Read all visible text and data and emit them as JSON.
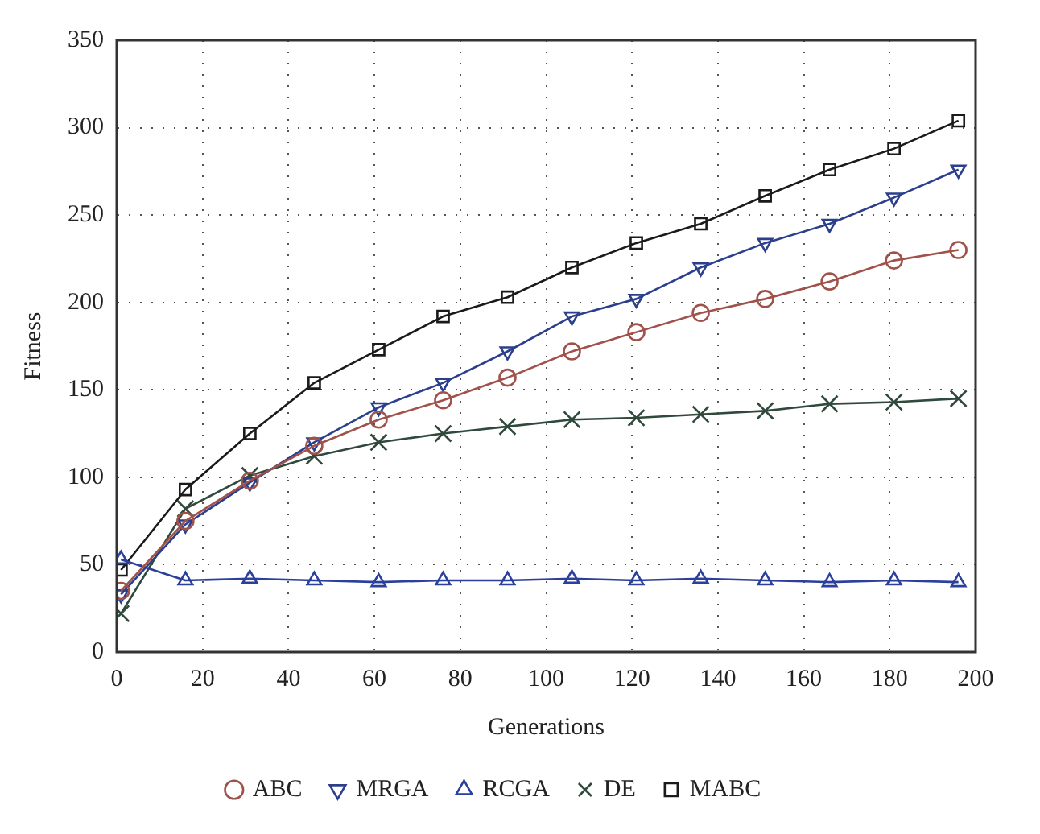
{
  "chart_data": {
    "type": "line",
    "xlabel": "Generations",
    "ylabel": "Fitness",
    "x": [
      1,
      16,
      31,
      46,
      61,
      76,
      91,
      106,
      121,
      136,
      151,
      166,
      181,
      196
    ],
    "xlim": [
      0,
      200
    ],
    "xticks": [
      0,
      20,
      40,
      60,
      80,
      100,
      120,
      140,
      160,
      180,
      200
    ],
    "ylim": [
      0,
      350
    ],
    "yticks": [
      0,
      50,
      100,
      150,
      200,
      250,
      300,
      350
    ],
    "grid": true,
    "legend": "bottom",
    "line_style": "solid",
    "series": [
      {
        "name": "ABC",
        "color": "#a0524a",
        "marker": "circle",
        "values": [
          35,
          75,
          98,
          118,
          133,
          144,
          157,
          172,
          183,
          194,
          202,
          212,
          224,
          230
        ]
      },
      {
        "name": "MRGA",
        "color": "#2b3f8c",
        "marker": "triangle",
        "values": [
          33,
          73,
          97,
          120,
          140,
          154,
          172,
          192,
          202,
          220,
          234,
          245,
          260,
          276
        ]
      },
      {
        "name": "RCGA",
        "color": "#2b3f9c",
        "marker": "triangle",
        "values": [
          53,
          41,
          42,
          41,
          40,
          41,
          41,
          42,
          41,
          42,
          41,
          40,
          41,
          40
        ]
      },
      {
        "name": "DE",
        "color": "#2f4a3c",
        "marker": "cross",
        "values": [
          22,
          82,
          101,
          112,
          120,
          125,
          129,
          133,
          134,
          136,
          138,
          142,
          143,
          145
        ]
      },
      {
        "name": "MABC",
        "color": "#1a1a1a",
        "marker": "square",
        "values": [
          47,
          93,
          125,
          154,
          173,
          192,
          203,
          220,
          234,
          245,
          261,
          276,
          288,
          304
        ]
      }
    ]
  }
}
